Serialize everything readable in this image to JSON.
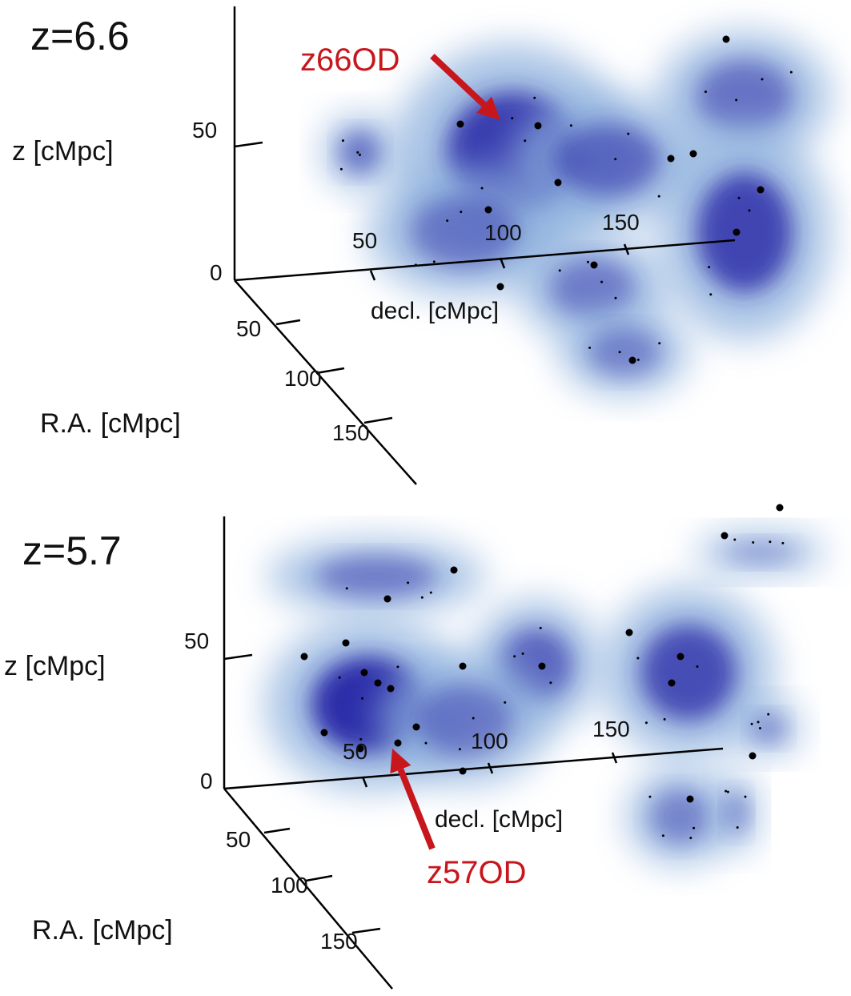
{
  "panels": [
    {
      "redshift": "z=6.6",
      "z_axis": {
        "title": "z [cMpc]",
        "ticks": [
          "0",
          "50"
        ]
      },
      "decl_axis": {
        "title": "decl. [cMpc]",
        "ticks": [
          "50",
          "100",
          "150"
        ]
      },
      "ra_axis": {
        "title": "R.A. [cMpc]",
        "ticks": [
          "50",
          "100",
          "150"
        ]
      },
      "annotation": "z66OD"
    },
    {
      "redshift": "z=5.7",
      "z_axis": {
        "title": "z [cMpc]",
        "ticks": [
          "0",
          "50"
        ]
      },
      "decl_axis": {
        "title": "decl. [cMpc]",
        "ticks": [
          "50",
          "100",
          "150"
        ]
      },
      "ra_axis": {
        "title": "R.A. [cMpc]",
        "ticks": [
          "50",
          "100",
          "150"
        ]
      },
      "annotation": "z57OD"
    }
  ]
}
